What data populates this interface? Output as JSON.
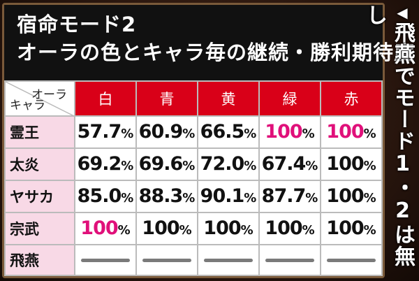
{
  "title": {
    "line1": "宿命モード2",
    "line2": "オーラの色とキャラ毎の継続・勝利期待度"
  },
  "table": {
    "corner_top": "オーラ",
    "corner_bottom": "キャラ",
    "columns": [
      "白",
      "青",
      "黄",
      "緑",
      "赤"
    ],
    "rows": [
      {
        "label": "霊王",
        "cells": [
          {
            "v": "57.7",
            "u": "%",
            "pink": false
          },
          {
            "v": "60.9",
            "u": "%",
            "pink": false
          },
          {
            "v": "66.5",
            "u": "%",
            "pink": false
          },
          {
            "v": "100",
            "u": "%",
            "pink": true
          },
          {
            "v": "100",
            "u": "%",
            "pink": true
          }
        ]
      },
      {
        "label": "太炎",
        "cells": [
          {
            "v": "69.2",
            "u": "%",
            "pink": false
          },
          {
            "v": "69.6",
            "u": "%",
            "pink": false
          },
          {
            "v": "72.0",
            "u": "%",
            "pink": false
          },
          {
            "v": "67.4",
            "u": "%",
            "pink": false
          },
          {
            "v": "100",
            "u": "%",
            "pink": false
          }
        ]
      },
      {
        "label": "ヤサカ",
        "cells": [
          {
            "v": "85.0",
            "u": "%",
            "pink": false
          },
          {
            "v": "88.3",
            "u": "%",
            "pink": false
          },
          {
            "v": "90.1",
            "u": "%",
            "pink": false
          },
          {
            "v": "87.7",
            "u": "%",
            "pink": false
          },
          {
            "v": "100",
            "u": "%",
            "pink": false
          }
        ]
      },
      {
        "label": "宗武",
        "cells": [
          {
            "v": "100",
            "u": "%",
            "pink": true
          },
          {
            "v": "100",
            "u": "%",
            "pink": false
          },
          {
            "v": "100",
            "u": "%",
            "pink": false
          },
          {
            "v": "100",
            "u": "%",
            "pink": false
          },
          {
            "v": "100",
            "u": "%",
            "pink": false
          }
        ]
      }
    ],
    "last_row_label": "飛燕"
  },
  "side_note": {
    "arrow": "◀",
    "text": "飛燕でモード1・2は無し"
  },
  "colors": {
    "header_red": "#d90018",
    "row_pink": "#f8d9e6",
    "highlight_pink": "#e0107a",
    "title_bg": "#111111"
  }
}
